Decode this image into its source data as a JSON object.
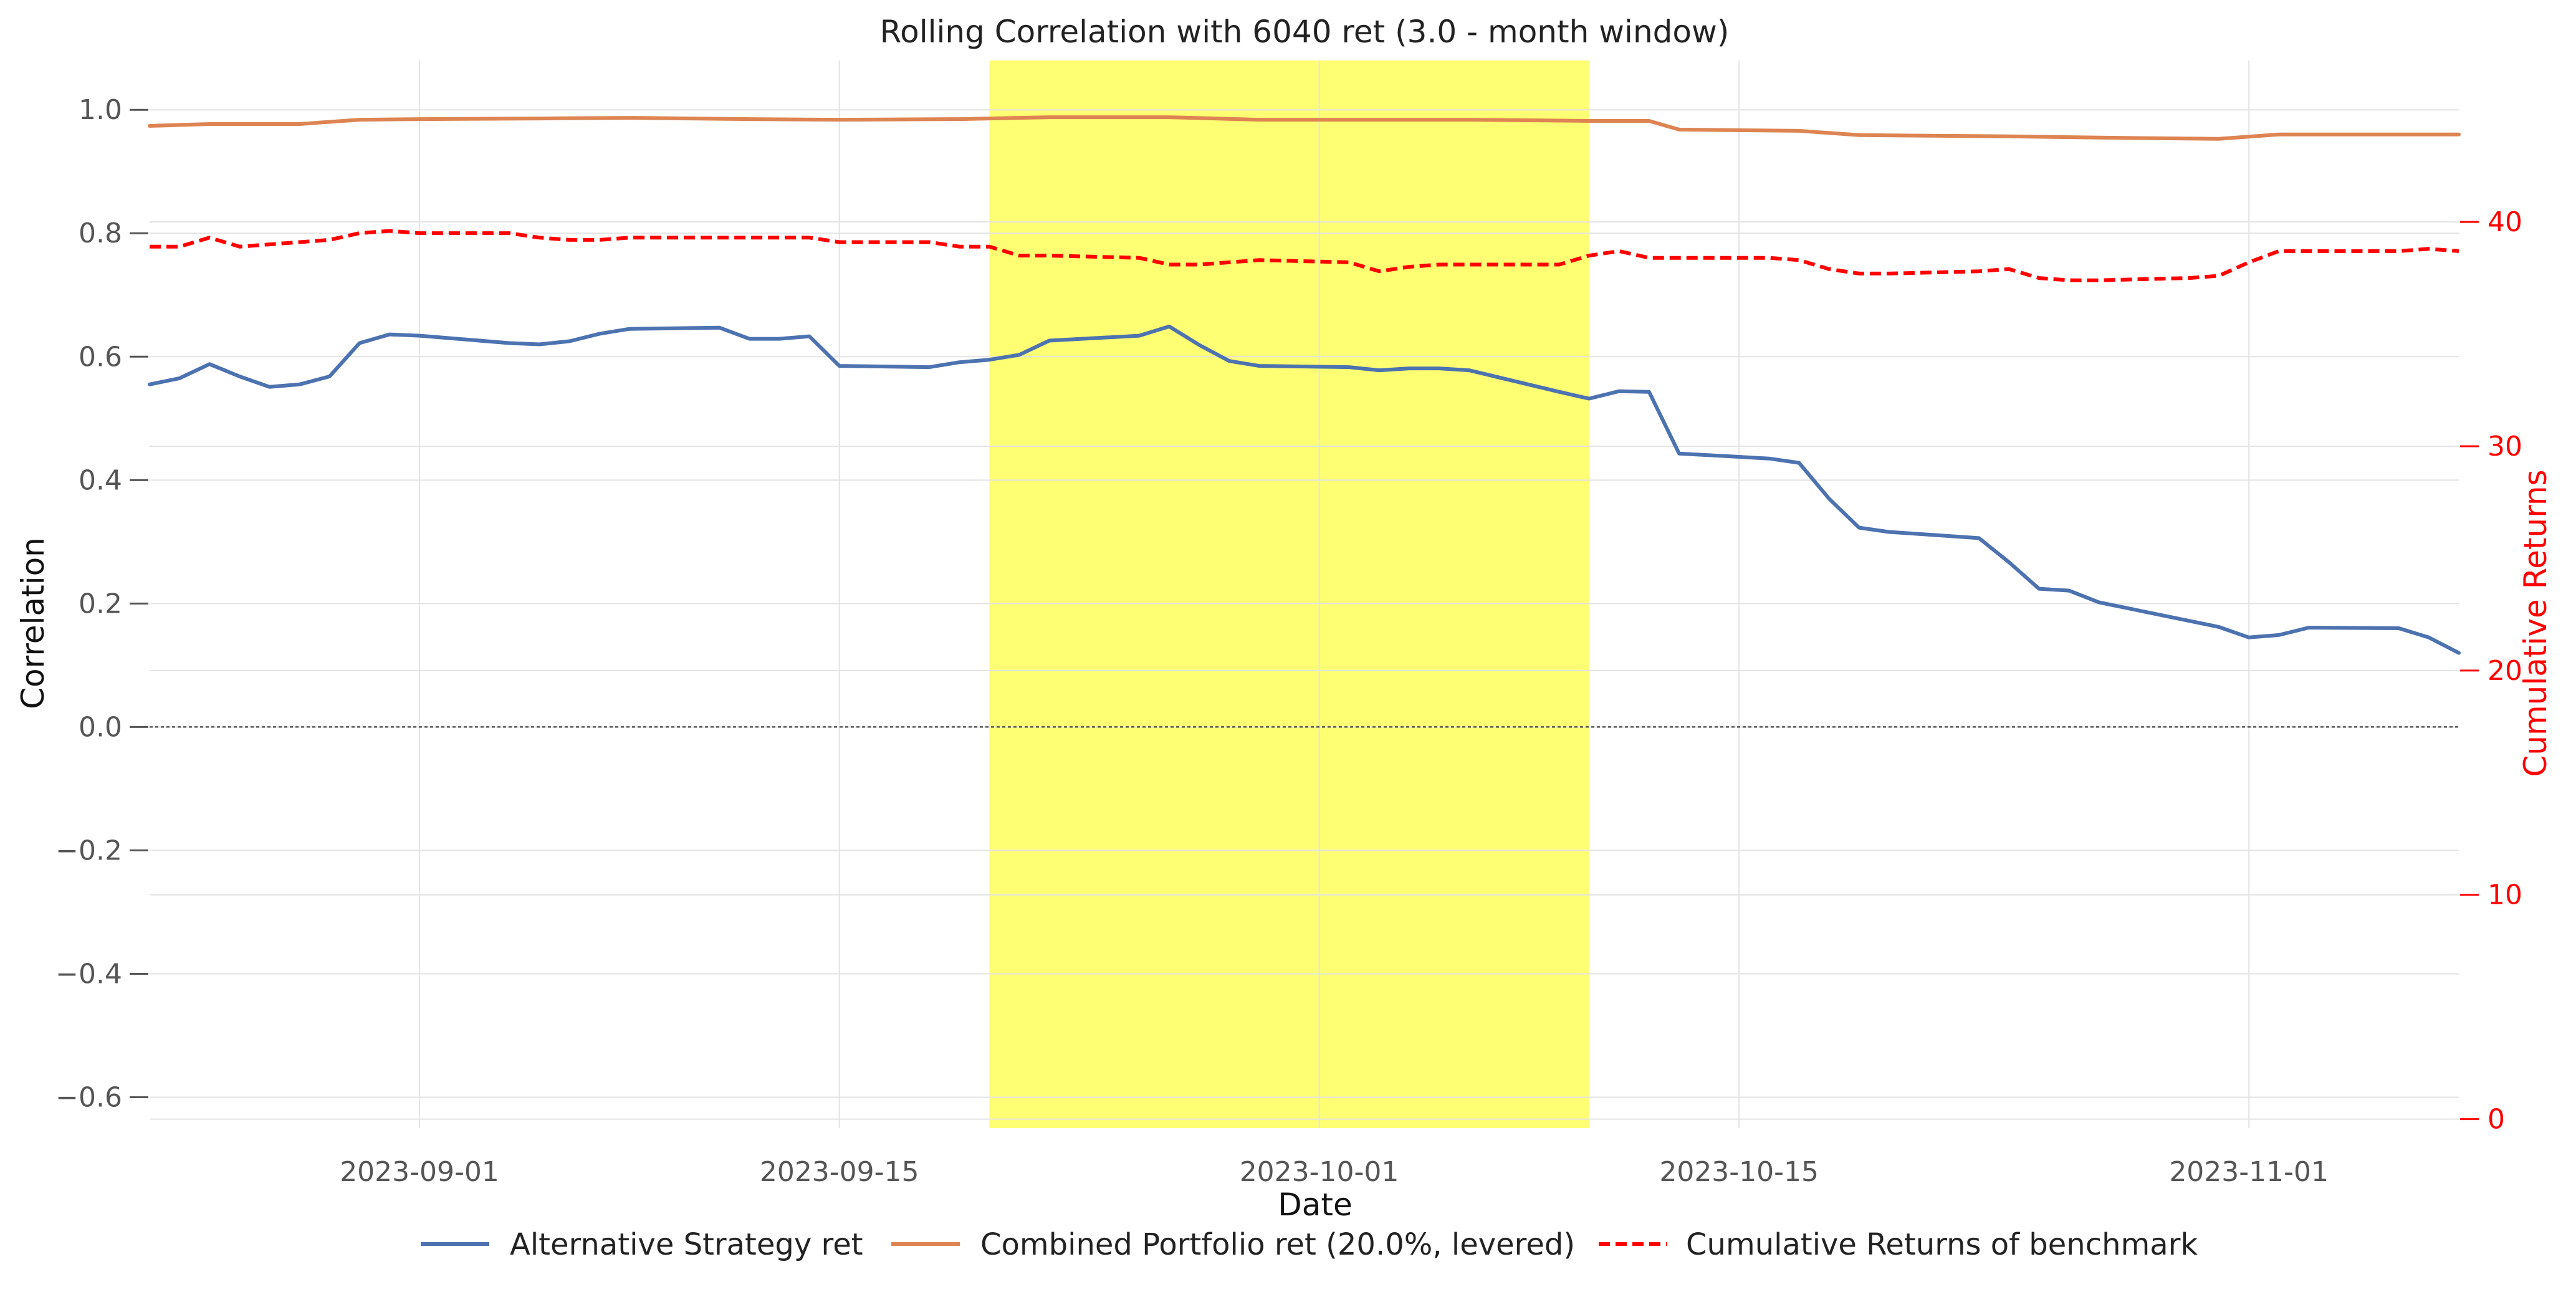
{
  "chart_data": {
    "type": "line",
    "title": "Rolling Correlation with 6040 ret (3.0 - month window)",
    "xlabel": "Date",
    "ylabel": "Correlation",
    "y2label": "Cumulative Returns",
    "xlim": [
      "2023-08-23",
      "2023-11-08"
    ],
    "ylim": [
      -0.65,
      1.08
    ],
    "y2lim": [
      -0.4,
      47.2
    ],
    "xticks": [
      "2023-09-01",
      "2023-09-15",
      "2023-10-01",
      "2023-10-15",
      "2023-11-01"
    ],
    "yticks": [
      -0.6,
      -0.4,
      -0.2,
      0.0,
      0.2,
      0.4,
      0.6,
      0.8,
      1.0
    ],
    "y2ticks": [
      0,
      10,
      20,
      30,
      40
    ],
    "ytick_labels": [
      "−0.6",
      "−0.4",
      "−0.2",
      "0.0",
      "0.2",
      "0.4",
      "0.6",
      "0.8",
      "1.0"
    ],
    "y2tick_labels": [
      "0",
      "10",
      "20",
      "30",
      "40"
    ],
    "grid": true,
    "zero_line": true,
    "legend_position": "bottom-center",
    "highlight": {
      "x_start": "2023-09-20",
      "x_end": "2023-10-10",
      "color": "#ffff00"
    },
    "series": [
      {
        "name": "Alternative Strategy ret",
        "axis": "left",
        "color": "#4c72b0",
        "style": "solid",
        "x": [
          "2023-08-23",
          "2023-08-24",
          "2023-08-25",
          "2023-08-26",
          "2023-08-27",
          "2023-08-28",
          "2023-08-29",
          "2023-08-30",
          "2023-08-31",
          "2023-09-01",
          "2023-09-04",
          "2023-09-05",
          "2023-09-06",
          "2023-09-07",
          "2023-09-08",
          "2023-09-11",
          "2023-09-12",
          "2023-09-13",
          "2023-09-14",
          "2023-09-15",
          "2023-09-18",
          "2023-09-19",
          "2023-09-20",
          "2023-09-21",
          "2023-09-22",
          "2023-09-25",
          "2023-09-26",
          "2023-09-27",
          "2023-09-28",
          "2023-09-29",
          "2023-10-02",
          "2023-10-03",
          "2023-10-04",
          "2023-10-05",
          "2023-10-06",
          "2023-10-09",
          "2023-10-10",
          "2023-10-11",
          "2023-10-12",
          "2023-10-13",
          "2023-10-16",
          "2023-10-17",
          "2023-10-18",
          "2023-10-19",
          "2023-10-20",
          "2023-10-23",
          "2023-10-24",
          "2023-10-25",
          "2023-10-26",
          "2023-10-27",
          "2023-10-30",
          "2023-10-31",
          "2023-11-01",
          "2023-11-02",
          "2023-11-03",
          "2023-11-06",
          "2023-11-07",
          "2023-11-08"
        ],
        "y": [
          0.555,
          0.565,
          0.588,
          0.568,
          0.551,
          0.555,
          0.568,
          0.622,
          0.636,
          0.634,
          0.622,
          0.62,
          0.625,
          0.637,
          0.645,
          0.647,
          0.629,
          0.629,
          0.633,
          0.585,
          0.583,
          0.591,
          0.595,
          0.603,
          0.626,
          0.634,
          0.649,
          0.619,
          0.593,
          0.585,
          0.583,
          0.578,
          0.581,
          0.581,
          0.578,
          0.543,
          0.532,
          0.544,
          0.543,
          0.443,
          0.435,
          0.428,
          0.37,
          0.323,
          0.316,
          0.306,
          0.267,
          0.224,
          0.221,
          0.202,
          0.172,
          0.162,
          0.145,
          0.149,
          0.161,
          0.16,
          0.145,
          0.12
        ]
      },
      {
        "name": "Combined Portfolio ret (20.0%, levered)",
        "axis": "left",
        "color": "#dd8452",
        "style": "solid",
        "x": [
          "2023-08-23",
          "2023-08-25",
          "2023-08-28",
          "2023-08-30",
          "2023-09-01",
          "2023-09-05",
          "2023-09-08",
          "2023-09-12",
          "2023-09-15",
          "2023-09-19",
          "2023-09-22",
          "2023-09-26",
          "2023-09-29",
          "2023-10-03",
          "2023-10-06",
          "2023-10-10",
          "2023-10-12",
          "2023-10-13",
          "2023-10-17",
          "2023-10-19",
          "2023-10-24",
          "2023-10-27",
          "2023-10-31",
          "2023-11-02",
          "2023-11-06",
          "2023-11-08"
        ],
        "y": [
          0.974,
          0.977,
          0.977,
          0.984,
          0.985,
          0.986,
          0.987,
          0.985,
          0.984,
          0.985,
          0.988,
          0.988,
          0.984,
          0.984,
          0.984,
          0.982,
          0.982,
          0.968,
          0.966,
          0.959,
          0.957,
          0.955,
          0.953,
          0.96,
          0.96,
          0.96
        ]
      },
      {
        "name": "Cumulative Returns of benchmark",
        "axis": "right",
        "color": "#ff0000",
        "style": "dashed",
        "x": [
          "2023-08-23",
          "2023-08-24",
          "2023-08-25",
          "2023-08-26",
          "2023-08-27",
          "2023-08-28",
          "2023-08-29",
          "2023-08-30",
          "2023-08-31",
          "2023-09-01",
          "2023-09-04",
          "2023-09-05",
          "2023-09-06",
          "2023-09-07",
          "2023-09-08",
          "2023-09-11",
          "2023-09-12",
          "2023-09-13",
          "2023-09-14",
          "2023-09-15",
          "2023-09-18",
          "2023-09-19",
          "2023-09-20",
          "2023-09-21",
          "2023-09-22",
          "2023-09-25",
          "2023-09-26",
          "2023-09-27",
          "2023-09-28",
          "2023-09-29",
          "2023-10-02",
          "2023-10-03",
          "2023-10-04",
          "2023-10-05",
          "2023-10-06",
          "2023-10-09",
          "2023-10-10",
          "2023-10-11",
          "2023-10-12",
          "2023-10-13",
          "2023-10-16",
          "2023-10-17",
          "2023-10-18",
          "2023-10-19",
          "2023-10-20",
          "2023-10-23",
          "2023-10-24",
          "2023-10-25",
          "2023-10-26",
          "2023-10-27",
          "2023-10-30",
          "2023-10-31",
          "2023-11-01",
          "2023-11-02",
          "2023-11-03",
          "2023-11-06",
          "2023-11-07",
          "2023-11-08"
        ],
        "y": [
          38.9,
          38.9,
          39.3,
          38.9,
          39.0,
          39.1,
          39.2,
          39.5,
          39.6,
          39.5,
          39.5,
          39.3,
          39.2,
          39.2,
          39.3,
          39.3,
          39.3,
          39.3,
          39.3,
          39.1,
          39.1,
          38.9,
          38.9,
          38.5,
          38.5,
          38.4,
          38.1,
          38.1,
          38.2,
          38.3,
          38.2,
          37.8,
          38.0,
          38.1,
          38.1,
          38.1,
          38.5,
          38.7,
          38.4,
          38.4,
          38.4,
          38.3,
          37.9,
          37.7,
          37.7,
          37.8,
          37.9,
          37.5,
          37.4,
          37.4,
          37.5,
          37.6,
          38.2,
          38.7,
          38.7,
          38.7,
          38.8,
          38.7
        ]
      }
    ]
  }
}
